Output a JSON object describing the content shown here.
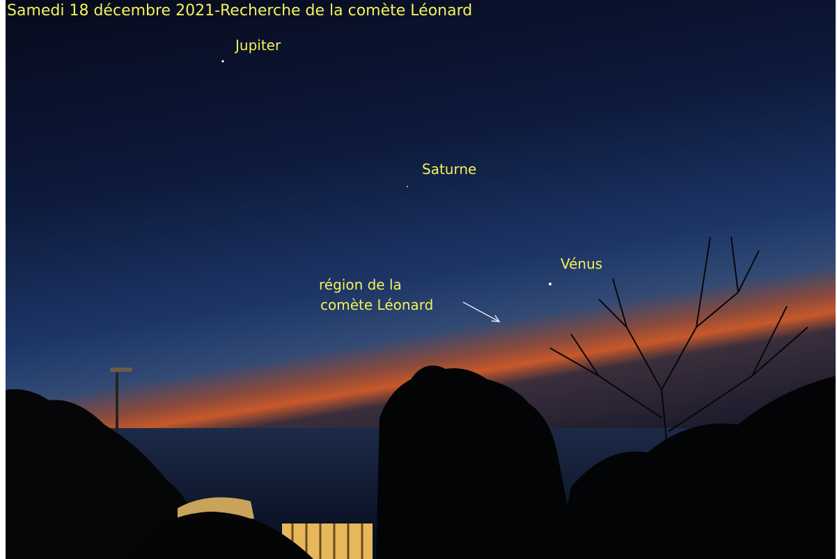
{
  "title": "Samedi 18 décembre 2021-Recherche de la comète Léonard",
  "annotations": [
    "Jupiter",
    "Saturne",
    "Vénus"
  ],
  "comet_label": [
    "région de la",
    "comète Léonard"
  ]
}
